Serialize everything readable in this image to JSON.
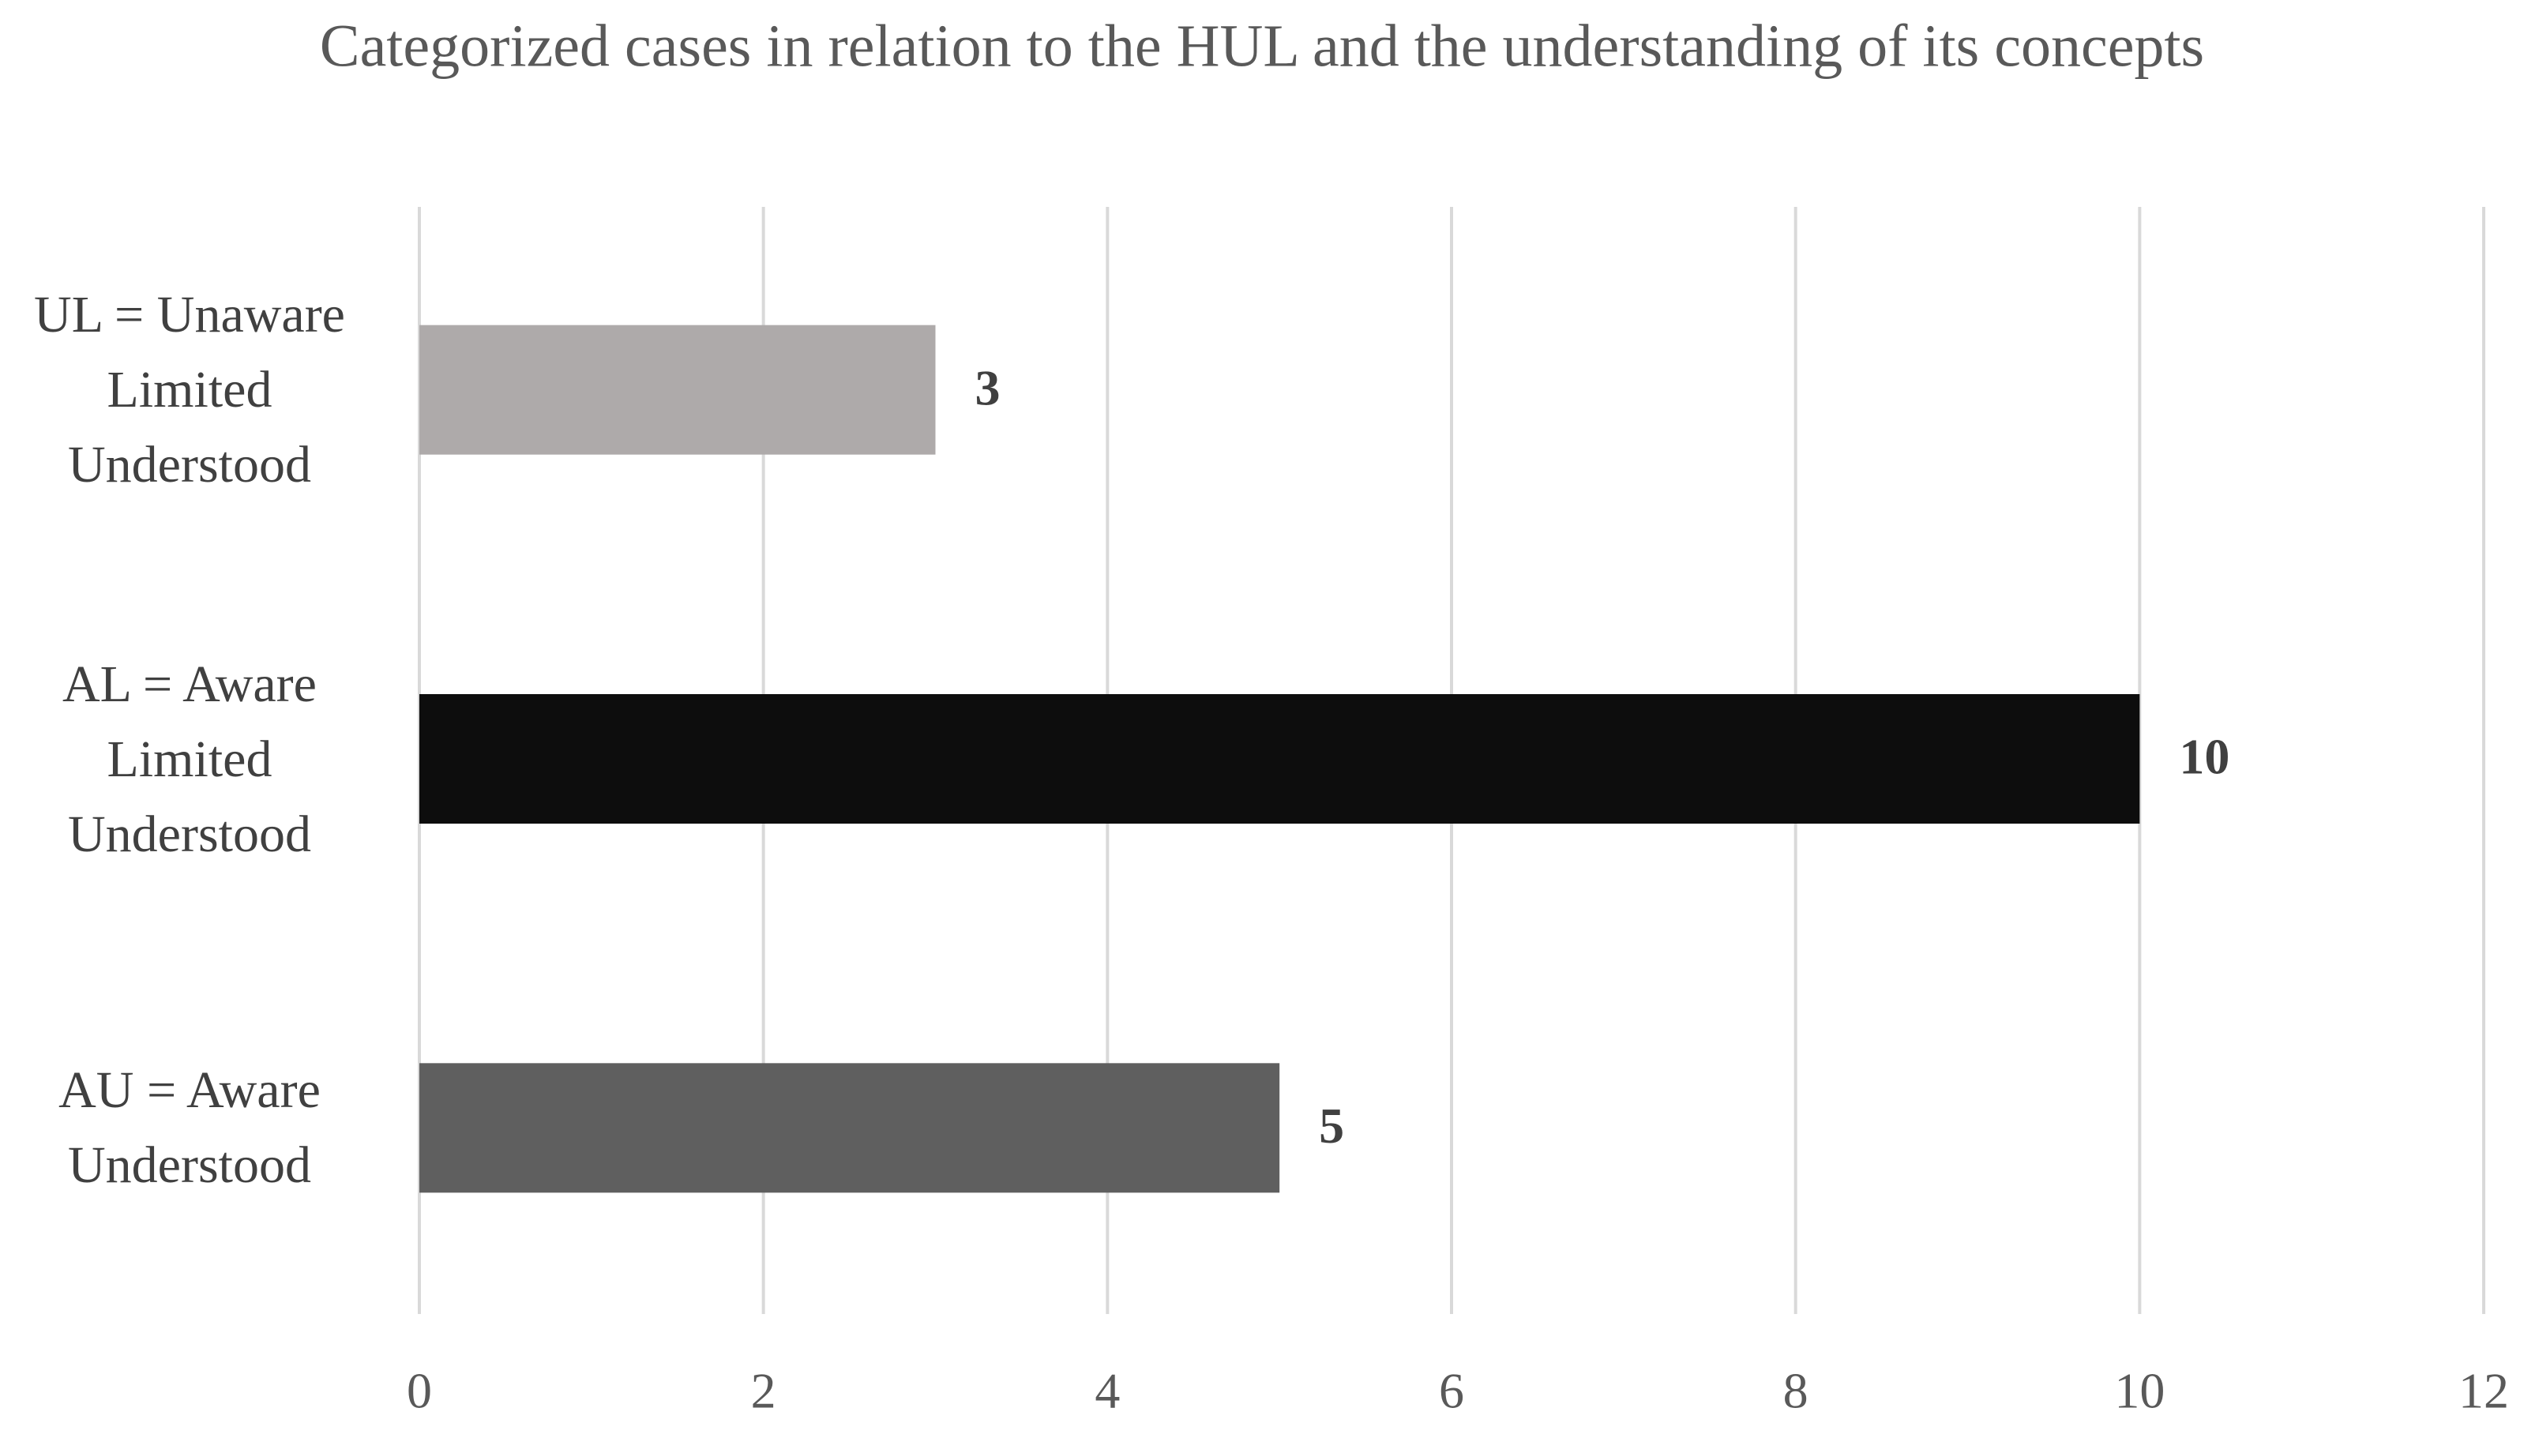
{
  "chart_data": {
    "type": "hbar",
    "title": "Categorized cases in relation to the HUL and the understanding of its concepts",
    "categories": [
      "UL = Unaware Limited Understood",
      "AL = Aware Limited Understood",
      "AU = Aware Understood"
    ],
    "values": [
      3,
      10,
      5
    ],
    "colors": [
      "#aeaaaa",
      "#0d0d0d",
      "#5f5f5f"
    ],
    "xlim": [
      0,
      12
    ],
    "xticks": [
      0,
      2,
      4,
      6,
      8,
      10,
      12
    ],
    "grid": true
  }
}
